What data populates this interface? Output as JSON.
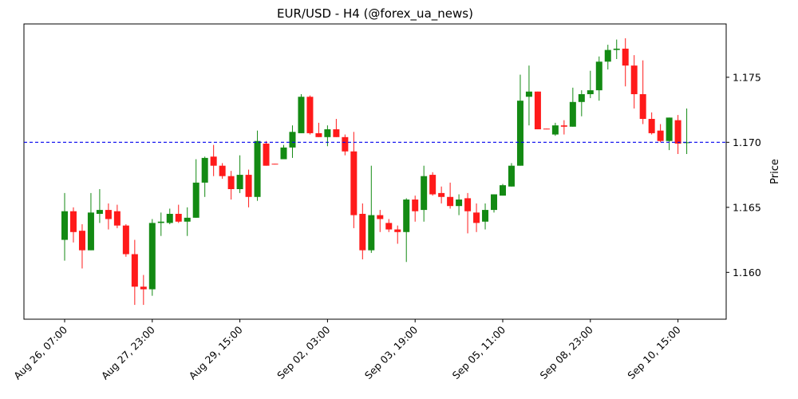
{
  "chart_data": {
    "type": "candlestick",
    "title": "EUR/USD - H4 (@forex_ua_news)",
    "ylabel": "Price",
    "categories": [
      "Aug 26, 07:00",
      null,
      null,
      null,
      null,
      null,
      null,
      null,
      null,
      null,
      "Aug 27, 23:00",
      null,
      null,
      null,
      null,
      null,
      null,
      null,
      null,
      null,
      "Aug 29, 15:00",
      null,
      null,
      null,
      null,
      null,
      null,
      null,
      null,
      null,
      "Sep 02, 03:00",
      null,
      null,
      null,
      null,
      null,
      null,
      null,
      null,
      null,
      "Sep 03, 19:00",
      null,
      null,
      null,
      null,
      null,
      null,
      null,
      null,
      null,
      "Sep 05, 11:00",
      null,
      null,
      null,
      null,
      null,
      null,
      null,
      null,
      null,
      "Sep 08, 23:00",
      null,
      null,
      null,
      null,
      null,
      null,
      null,
      null,
      null,
      "Sep 10, 15:00",
      null
    ],
    "open": [
      1.1625,
      1.1647,
      1.1632,
      1.1617,
      1.1645,
      1.1648,
      1.1647,
      1.1636,
      1.1614,
      1.1589,
      1.1587,
      1.1638,
      1.1638,
      1.1645,
      1.1639,
      1.1642,
      1.1669,
      1.1689,
      1.1682,
      1.1674,
      1.1664,
      1.1675,
      1.1658,
      1.1699,
      1.16835,
      1.1687,
      1.1696,
      1.1707,
      1.1735,
      1.1707,
      1.1704,
      1.171,
      1.1704,
      1.1693,
      1.1645,
      1.1617,
      1.1644,
      1.1638,
      1.1633,
      1.1631,
      1.1656,
      1.1648,
      1.1675,
      1.1661,
      1.1658,
      1.1651,
      1.1657,
      1.1646,
      1.1639,
      1.1648,
      1.1659,
      1.1666,
      1.1682,
      1.1735,
      1.1739,
      1.17105,
      1.1706,
      1.1713,
      1.1712,
      1.1731,
      1.1737,
      1.174,
      1.1762,
      1.1771,
      1.1772,
      1.1759,
      1.1737,
      1.1718,
      1.1709,
      1.1701,
      1.1717,
      1.16995
    ],
    "high": [
      1.1661,
      1.165,
      1.1637,
      1.1661,
      1.1664,
      1.1653,
      1.1652,
      1.1637,
      1.1625,
      1.1598,
      1.1641,
      1.1646,
      1.1649,
      1.1652,
      1.165,
      1.1687,
      1.1689,
      1.1698,
      1.1684,
      1.1678,
      1.169,
      1.1679,
      1.1709,
      1.1701,
      1.16835,
      1.1698,
      1.1713,
      1.1737,
      1.1736,
      1.1715,
      1.1713,
      1.1718,
      1.1706,
      1.1708,
      1.1653,
      1.1682,
      1.1648,
      1.1641,
      1.1636,
      1.1657,
      1.1659,
      1.1682,
      1.1677,
      1.1666,
      1.1669,
      1.166,
      1.1661,
      1.1653,
      1.1653,
      1.166,
      1.1668,
      1.1684,
      1.1752,
      1.1759,
      1.1739,
      1.17105,
      1.1715,
      1.1717,
      1.1742,
      1.174,
      1.1755,
      1.1766,
      1.1775,
      1.1779,
      1.178,
      1.1767,
      1.1763,
      1.1723,
      1.1714,
      1.1719,
      1.1721,
      1.1726
    ],
    "low": [
      1.1609,
      1.1623,
      1.1603,
      1.1617,
      1.1638,
      1.1633,
      1.1634,
      1.1612,
      1.1575,
      1.1575,
      1.1582,
      1.1628,
      1.1637,
      1.1638,
      1.1628,
      1.1642,
      1.1658,
      1.1674,
      1.1672,
      1.1656,
      1.1661,
      1.165,
      1.1655,
      1.1682,
      1.1683,
      1.1687,
      1.1688,
      1.1707,
      1.1706,
      1.1704,
      1.1697,
      1.1704,
      1.169,
      1.1634,
      1.161,
      1.1615,
      1.1631,
      1.1631,
      1.1622,
      1.1608,
      1.1639,
      1.1639,
      1.1659,
      1.1653,
      1.1649,
      1.1644,
      1.163,
      1.1631,
      1.1633,
      1.1646,
      1.1659,
      1.1666,
      1.1682,
      1.1713,
      1.171,
      1.171,
      1.1705,
      1.1706,
      1.1712,
      1.172,
      1.1734,
      1.1732,
      1.1756,
      1.1764,
      1.1743,
      1.1726,
      1.1714,
      1.1706,
      1.17,
      1.1694,
      1.1691,
      1.1691
    ],
    "close": [
      1.1647,
      1.1631,
      1.1617,
      1.1646,
      1.1648,
      1.1641,
      1.1636,
      1.1614,
      1.1589,
      1.1587,
      1.1638,
      1.1639,
      1.1645,
      1.1639,
      1.1642,
      1.1669,
      1.1688,
      1.1682,
      1.1674,
      1.1664,
      1.1675,
      1.1658,
      1.1701,
      1.1682,
      1.1683,
      1.1696,
      1.1708,
      1.1735,
      1.1707,
      1.1704,
      1.171,
      1.1704,
      1.1693,
      1.1644,
      1.1617,
      1.1644,
      1.1641,
      1.1633,
      1.1631,
      1.1656,
      1.1647,
      1.1674,
      1.166,
      1.1658,
      1.1651,
      1.1656,
      1.1647,
      1.1638,
      1.1648,
      1.166,
      1.1667,
      1.1682,
      1.1732,
      1.1739,
      1.171,
      1.171,
      1.1713,
      1.1712,
      1.1731,
      1.1737,
      1.174,
      1.1762,
      1.1771,
      1.1772,
      1.1759,
      1.1737,
      1.1718,
      1.1707,
      1.1701,
      1.1719,
      1.1699,
      1.17
    ],
    "up_color": "#138a13",
    "down_color": "#ff1a1a",
    "hline": {
      "value": 1.17,
      "color": "#0000ee",
      "dashed": true
    },
    "ylim": [
      1.1564,
      1.1791
    ],
    "yticks": [
      {
        "value": 1.16,
        "label": "1.160"
      },
      {
        "value": 1.165,
        "label": "1.165"
      },
      {
        "value": 1.17,
        "label": "1.170"
      },
      {
        "value": 1.175,
        "label": "1.175"
      }
    ]
  }
}
